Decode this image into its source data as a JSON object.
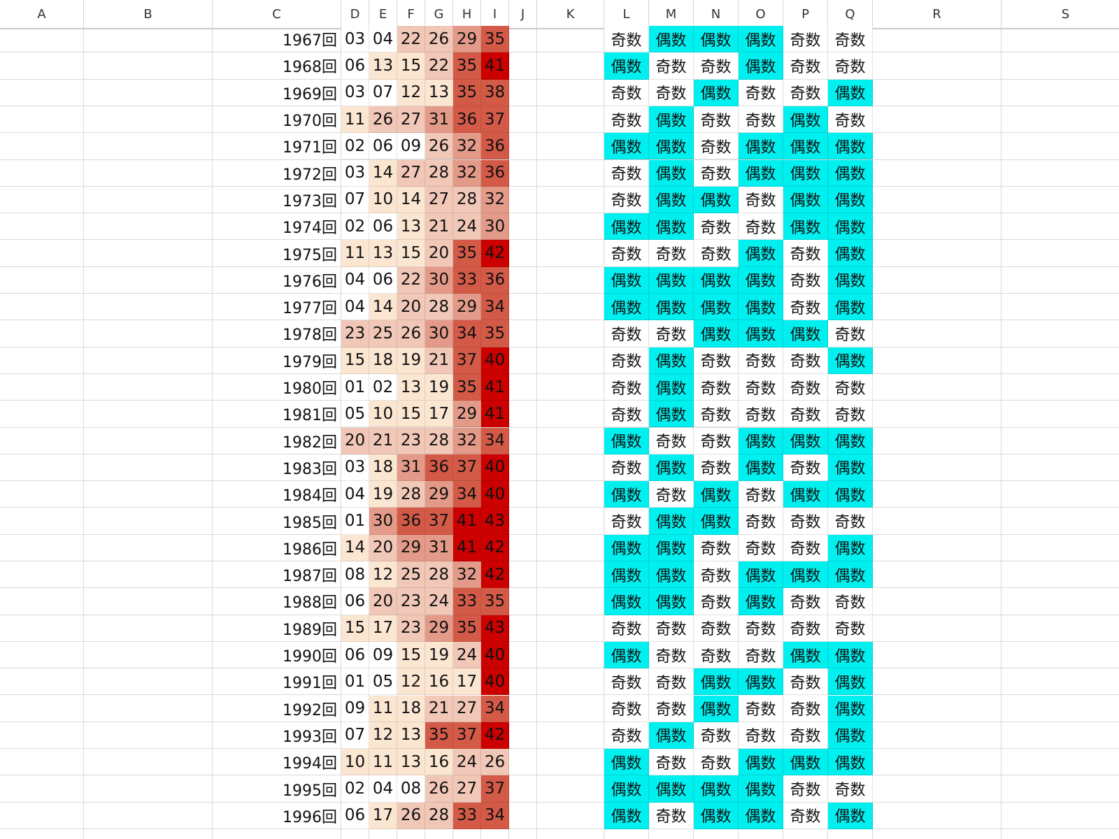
{
  "columns": [
    "A",
    "B",
    "C",
    "D",
    "E",
    "F",
    "G",
    "H",
    "I",
    "J",
    "K",
    "L",
    "M",
    "N",
    "O",
    "P",
    "Q",
    "R",
    "S"
  ],
  "number_shades": [
    "#ffffff",
    "#fbe6d2",
    "#f1c7b7",
    "#e49a88",
    "#d45a48",
    "#cc0000"
  ],
  "parity_colors": {
    "even": "#00f0f0",
    "odd": "#ffffff"
  },
  "rows": [
    {
      "draw": "1967回",
      "nums": [
        "03",
        "04",
        "22",
        "26",
        "29",
        "35"
      ],
      "parity": [
        "奇数",
        "偶数",
        "偶数",
        "偶数",
        "奇数",
        "奇数"
      ]
    },
    {
      "draw": "1968回",
      "nums": [
        "06",
        "13",
        "15",
        "22",
        "35",
        "41"
      ],
      "parity": [
        "偶数",
        "奇数",
        "奇数",
        "偶数",
        "奇数",
        "奇数"
      ]
    },
    {
      "draw": "1969回",
      "nums": [
        "03",
        "07",
        "12",
        "13",
        "35",
        "38"
      ],
      "parity": [
        "奇数",
        "奇数",
        "偶数",
        "奇数",
        "奇数",
        "偶数"
      ]
    },
    {
      "draw": "1970回",
      "nums": [
        "11",
        "26",
        "27",
        "31",
        "36",
        "37"
      ],
      "parity": [
        "奇数",
        "偶数",
        "奇数",
        "奇数",
        "偶数",
        "奇数"
      ]
    },
    {
      "draw": "1971回",
      "nums": [
        "02",
        "06",
        "09",
        "26",
        "32",
        "36"
      ],
      "parity": [
        "偶数",
        "偶数",
        "奇数",
        "偶数",
        "偶数",
        "偶数"
      ]
    },
    {
      "draw": "1972回",
      "nums": [
        "03",
        "14",
        "27",
        "28",
        "32",
        "36"
      ],
      "parity": [
        "奇数",
        "偶数",
        "奇数",
        "偶数",
        "偶数",
        "偶数"
      ]
    },
    {
      "draw": "1973回",
      "nums": [
        "07",
        "10",
        "14",
        "27",
        "28",
        "32"
      ],
      "parity": [
        "奇数",
        "偶数",
        "偶数",
        "奇数",
        "偶数",
        "偶数"
      ]
    },
    {
      "draw": "1974回",
      "nums": [
        "02",
        "06",
        "13",
        "21",
        "24",
        "30"
      ],
      "parity": [
        "偶数",
        "偶数",
        "奇数",
        "奇数",
        "偶数",
        "偶数"
      ]
    },
    {
      "draw": "1975回",
      "nums": [
        "11",
        "13",
        "15",
        "20",
        "35",
        "42"
      ],
      "parity": [
        "奇数",
        "奇数",
        "奇数",
        "偶数",
        "奇数",
        "偶数"
      ]
    },
    {
      "draw": "1976回",
      "nums": [
        "04",
        "06",
        "22",
        "30",
        "33",
        "36"
      ],
      "parity": [
        "偶数",
        "偶数",
        "偶数",
        "偶数",
        "奇数",
        "偶数"
      ]
    },
    {
      "draw": "1977回",
      "nums": [
        "04",
        "14",
        "20",
        "28",
        "29",
        "34"
      ],
      "parity": [
        "偶数",
        "偶数",
        "偶数",
        "偶数",
        "奇数",
        "偶数"
      ]
    },
    {
      "draw": "1978回",
      "nums": [
        "23",
        "25",
        "26",
        "30",
        "34",
        "35"
      ],
      "parity": [
        "奇数",
        "奇数",
        "偶数",
        "偶数",
        "偶数",
        "奇数"
      ]
    },
    {
      "draw": "1979回",
      "nums": [
        "15",
        "18",
        "19",
        "21",
        "37",
        "40"
      ],
      "parity": [
        "奇数",
        "偶数",
        "奇数",
        "奇数",
        "奇数",
        "偶数"
      ]
    },
    {
      "draw": "1980回",
      "nums": [
        "01",
        "02",
        "13",
        "19",
        "35",
        "41"
      ],
      "parity": [
        "奇数",
        "偶数",
        "奇数",
        "奇数",
        "奇数",
        "奇数"
      ]
    },
    {
      "draw": "1981回",
      "nums": [
        "05",
        "10",
        "15",
        "17",
        "29",
        "41"
      ],
      "parity": [
        "奇数",
        "偶数",
        "奇数",
        "奇数",
        "奇数",
        "奇数"
      ]
    },
    {
      "draw": "1982回",
      "nums": [
        "20",
        "21",
        "23",
        "28",
        "32",
        "34"
      ],
      "parity": [
        "偶数",
        "奇数",
        "奇数",
        "偶数",
        "偶数",
        "偶数"
      ]
    },
    {
      "draw": "1983回",
      "nums": [
        "03",
        "18",
        "31",
        "36",
        "37",
        "40"
      ],
      "parity": [
        "奇数",
        "偶数",
        "奇数",
        "偶数",
        "奇数",
        "偶数"
      ]
    },
    {
      "draw": "1984回",
      "nums": [
        "04",
        "19",
        "28",
        "29",
        "34",
        "40"
      ],
      "parity": [
        "偶数",
        "奇数",
        "偶数",
        "奇数",
        "偶数",
        "偶数"
      ]
    },
    {
      "draw": "1985回",
      "nums": [
        "01",
        "30",
        "36",
        "37",
        "41",
        "43"
      ],
      "parity": [
        "奇数",
        "偶数",
        "偶数",
        "奇数",
        "奇数",
        "奇数"
      ]
    },
    {
      "draw": "1986回",
      "nums": [
        "14",
        "20",
        "29",
        "31",
        "41",
        "42"
      ],
      "parity": [
        "偶数",
        "偶数",
        "奇数",
        "奇数",
        "奇数",
        "偶数"
      ]
    },
    {
      "draw": "1987回",
      "nums": [
        "08",
        "12",
        "25",
        "28",
        "32",
        "42"
      ],
      "parity": [
        "偶数",
        "偶数",
        "奇数",
        "偶数",
        "偶数",
        "偶数"
      ]
    },
    {
      "draw": "1988回",
      "nums": [
        "06",
        "20",
        "23",
        "24",
        "33",
        "35"
      ],
      "parity": [
        "偶数",
        "偶数",
        "奇数",
        "偶数",
        "奇数",
        "奇数"
      ]
    },
    {
      "draw": "1989回",
      "nums": [
        "15",
        "17",
        "23",
        "29",
        "35",
        "43"
      ],
      "parity": [
        "奇数",
        "奇数",
        "奇数",
        "奇数",
        "奇数",
        "奇数"
      ]
    },
    {
      "draw": "1990回",
      "nums": [
        "06",
        "09",
        "15",
        "19",
        "24",
        "40"
      ],
      "parity": [
        "偶数",
        "奇数",
        "奇数",
        "奇数",
        "偶数",
        "偶数"
      ]
    },
    {
      "draw": "1991回",
      "nums": [
        "01",
        "05",
        "12",
        "16",
        "17",
        "40"
      ],
      "parity": [
        "奇数",
        "奇数",
        "偶数",
        "偶数",
        "奇数",
        "偶数"
      ]
    },
    {
      "draw": "1992回",
      "nums": [
        "09",
        "11",
        "18",
        "21",
        "27",
        "34"
      ],
      "parity": [
        "奇数",
        "奇数",
        "偶数",
        "奇数",
        "奇数",
        "偶数"
      ]
    },
    {
      "draw": "1993回",
      "nums": [
        "07",
        "12",
        "13",
        "35",
        "37",
        "42"
      ],
      "parity": [
        "奇数",
        "偶数",
        "奇数",
        "奇数",
        "奇数",
        "偶数"
      ]
    },
    {
      "draw": "1994回",
      "nums": [
        "10",
        "11",
        "13",
        "16",
        "24",
        "26"
      ],
      "parity": [
        "偶数",
        "奇数",
        "奇数",
        "偶数",
        "偶数",
        "偶数"
      ]
    },
    {
      "draw": "1995回",
      "nums": [
        "02",
        "04",
        "08",
        "26",
        "27",
        "37"
      ],
      "parity": [
        "偶数",
        "偶数",
        "偶数",
        "偶数",
        "奇数",
        "奇数"
      ]
    },
    {
      "draw": "1996回",
      "nums": [
        "06",
        "17",
        "26",
        "28",
        "33",
        "34"
      ],
      "parity": [
        "偶数",
        "奇数",
        "偶数",
        "偶数",
        "奇数",
        "偶数"
      ]
    }
  ]
}
